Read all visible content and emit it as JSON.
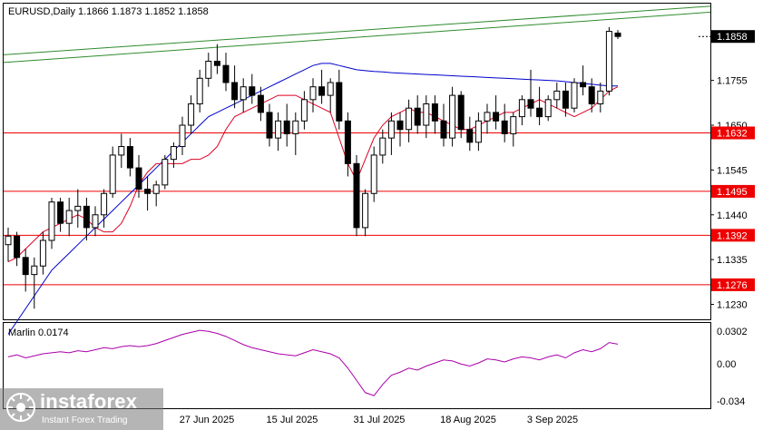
{
  "colors": {
    "candle_bull": "#ffffff",
    "candle_bear": "#000000",
    "ma_blue": "#0000cc",
    "ma_red": "#dd0022",
    "channel_green": "#2e8b2e",
    "level_red": "#ee0000",
    "marlin": "#aa00aa",
    "price_box": "#000000",
    "level_box": "#ee0000"
  },
  "header": {
    "symbol_line": "EURUSD,Daily  1.1866 1.1873 1.1852 1.1858"
  },
  "price_axis": {
    "ticks": [
      "1.1755",
      "1.1650",
      "1.1545",
      "1.1440",
      "1.1335",
      "1.1230"
    ],
    "current_price": "1.1858",
    "levels": [
      "1.1632",
      "1.1495",
      "1.1392",
      "1.1276"
    ]
  },
  "indicator": {
    "label": "Marlin 0.0174",
    "ticks": [
      "0.0302",
      "0.00",
      "-0.034"
    ]
  },
  "date_axis": {
    "labels": [
      "27 Jun 2025",
      "15 Jul 2025",
      "31 Jul 2025",
      "18 Aug 2025",
      "3 Sep 2025"
    ]
  },
  "watermark": {
    "brand": "instaforex",
    "tagline": "Instant Forex Trading"
  },
  "chart_data": [
    {
      "type": "candlestick",
      "title": "EURUSD,Daily",
      "ohlc_header": [
        1.1866,
        1.1873,
        1.1852,
        1.1858
      ],
      "ylim": [
        1.1195,
        1.1935
      ],
      "candles": [
        [
          1.137,
          1.141,
          1.133,
          1.139
        ],
        [
          1.139,
          1.14,
          1.132,
          1.134
        ],
        [
          1.134,
          1.136,
          1.126,
          1.13
        ],
        [
          1.13,
          1.134,
          1.122,
          1.132
        ],
        [
          1.132,
          1.14,
          1.13,
          1.138
        ],
        [
          1.138,
          1.148,
          1.136,
          1.147
        ],
        [
          1.147,
          1.148,
          1.14,
          1.142
        ],
        [
          1.142,
          1.148,
          1.139,
          1.145
        ],
        [
          1.145,
          1.15,
          1.141,
          1.146
        ],
        [
          1.146,
          1.148,
          1.138,
          1.141
        ],
        [
          1.141,
          1.146,
          1.139,
          1.144
        ],
        [
          1.144,
          1.15,
          1.141,
          1.149
        ],
        [
          1.149,
          1.16,
          1.148,
          1.158
        ],
        [
          1.158,
          1.163,
          1.155,
          1.16
        ],
        [
          1.16,
          1.162,
          1.153,
          1.155
        ],
        [
          1.155,
          1.158,
          1.148,
          1.15
        ],
        [
          1.15,
          1.153,
          1.145,
          1.149
        ],
        [
          1.149,
          1.152,
          1.146,
          1.151
        ],
        [
          1.151,
          1.158,
          1.15,
          1.157
        ],
        [
          1.157,
          1.161,
          1.155,
          1.16
        ],
        [
          1.16,
          1.167,
          1.158,
          1.165
        ],
        [
          1.165,
          1.172,
          1.163,
          1.17
        ],
        [
          1.17,
          1.178,
          1.168,
          1.176
        ],
        [
          1.176,
          1.182,
          1.174,
          1.18
        ],
        [
          1.18,
          1.184,
          1.177,
          1.179
        ],
        [
          1.179,
          1.182,
          1.173,
          1.175
        ],
        [
          1.175,
          1.179,
          1.169,
          1.171
        ],
        [
          1.171,
          1.176,
          1.168,
          1.174
        ],
        [
          1.174,
          1.177,
          1.17,
          1.172
        ],
        [
          1.172,
          1.174,
          1.166,
          1.168
        ],
        [
          1.168,
          1.17,
          1.16,
          1.162
        ],
        [
          1.162,
          1.168,
          1.159,
          1.166
        ],
        [
          1.166,
          1.17,
          1.16,
          1.163
        ],
        [
          1.163,
          1.168,
          1.158,
          1.166
        ],
        [
          1.166,
          1.173,
          1.164,
          1.171
        ],
        [
          1.171,
          1.176,
          1.168,
          1.174
        ],
        [
          1.174,
          1.178,
          1.17,
          1.172
        ],
        [
          1.172,
          1.176,
          1.168,
          1.175
        ],
        [
          1.175,
          1.178,
          1.164,
          1.166
        ],
        [
          1.166,
          1.168,
          1.153,
          1.156
        ],
        [
          1.156,
          1.158,
          1.139,
          1.141
        ],
        [
          1.141,
          1.15,
          1.139,
          1.149
        ],
        [
          1.149,
          1.16,
          1.147,
          1.158
        ],
        [
          1.158,
          1.164,
          1.156,
          1.162
        ],
        [
          1.162,
          1.168,
          1.158,
          1.166
        ],
        [
          1.166,
          1.168,
          1.16,
          1.164
        ],
        [
          1.164,
          1.171,
          1.161,
          1.169
        ],
        [
          1.169,
          1.172,
          1.163,
          1.165
        ],
        [
          1.165,
          1.172,
          1.162,
          1.17
        ],
        [
          1.17,
          1.172,
          1.163,
          1.166
        ],
        [
          1.166,
          1.17,
          1.16,
          1.162
        ],
        [
          1.162,
          1.174,
          1.16,
          1.172
        ],
        [
          1.172,
          1.173,
          1.162,
          1.164
        ],
        [
          1.164,
          1.167,
          1.159,
          1.161
        ],
        [
          1.161,
          1.168,
          1.159,
          1.166
        ],
        [
          1.166,
          1.17,
          1.163,
          1.168
        ],
        [
          1.168,
          1.172,
          1.164,
          1.166
        ],
        [
          1.166,
          1.17,
          1.161,
          1.163
        ],
        [
          1.163,
          1.168,
          1.16,
          1.167
        ],
        [
          1.167,
          1.172,
          1.165,
          1.171
        ],
        [
          1.171,
          1.178,
          1.167,
          1.169
        ],
        [
          1.169,
          1.174,
          1.165,
          1.167
        ],
        [
          1.167,
          1.172,
          1.166,
          1.171
        ],
        [
          1.171,
          1.175,
          1.169,
          1.173
        ],
        [
          1.173,
          1.175,
          1.167,
          1.169
        ],
        [
          1.169,
          1.176,
          1.168,
          1.175
        ],
        [
          1.175,
          1.179,
          1.172,
          1.174
        ],
        [
          1.174,
          1.176,
          1.168,
          1.17
        ],
        [
          1.17,
          1.175,
          1.168,
          1.173
        ],
        [
          1.173,
          1.188,
          1.172,
          1.187
        ],
        [
          1.1866,
          1.1873,
          1.1852,
          1.1858
        ]
      ]
    },
    {
      "type": "line",
      "series": [
        {
          "values": [
            1.116,
            1.119,
            1.122,
            1.125,
            1.128,
            1.131,
            1.133,
            1.135,
            1.137,
            1.139,
            1.141,
            1.143,
            1.145,
            1.147,
            1.149,
            1.151,
            1.153,
            1.155,
            1.157,
            1.159,
            1.161,
            1.163,
            1.165,
            1.167,
            1.168,
            1.169,
            1.17,
            1.171,
            1.172,
            1.173,
            1.174,
            1.175,
            1.176,
            1.177,
            1.178,
            1.179,
            1.1795,
            1.1795,
            1.179,
            1.1785,
            1.178,
            1.1778,
            1.1776,
            1.1775,
            1.1773,
            1.1772,
            1.1771,
            1.177,
            1.1769,
            1.1768,
            1.1767,
            1.1766,
            1.1765,
            1.1764,
            1.1763,
            1.1762,
            1.1761,
            1.176,
            1.1759,
            1.1758,
            1.1757,
            1.1756,
            1.1755,
            1.1754,
            1.1752,
            1.175,
            1.1748,
            1.1746,
            1.1744,
            1.1742,
            1.1742
          ]
        },
        {
          "values": [
            1.133,
            1.134,
            1.136,
            1.138,
            1.14,
            1.141,
            1.142,
            1.143,
            1.144,
            1.143,
            1.141,
            1.14,
            1.14,
            1.142,
            1.146,
            1.151,
            1.154,
            1.156,
            1.156,
            1.156,
            1.156,
            1.157,
            1.157,
            1.158,
            1.16,
            1.164,
            1.167,
            1.168,
            1.169,
            1.17,
            1.171,
            1.172,
            1.172,
            1.172,
            1.171,
            1.17,
            1.169,
            1.168,
            1.162,
            1.156,
            1.152,
            1.157,
            1.162,
            1.165,
            1.167,
            1.168,
            1.169,
            1.168,
            1.168,
            1.167,
            1.166,
            1.165,
            1.164,
            1.164,
            1.165,
            1.166,
            1.167,
            1.168,
            1.168,
            1.169,
            1.17,
            1.171,
            1.17,
            1.169,
            1.168,
            1.167,
            1.168,
            1.169,
            1.171,
            1.173,
            1.174
          ]
        }
      ]
    },
    {
      "type": "line",
      "title": "Marlin 0.0174",
      "ylim": [
        -0.034,
        0.0302
      ],
      "values": [
        0.005,
        0.007,
        0.004,
        0.006,
        0.008,
        0.009,
        0.01,
        0.009,
        0.011,
        0.01,
        0.012,
        0.014,
        0.013,
        0.015,
        0.016,
        0.015,
        0.016,
        0.018,
        0.021,
        0.024,
        0.027,
        0.029,
        0.031,
        0.03,
        0.028,
        0.025,
        0.021,
        0.017,
        0.014,
        0.012,
        0.01,
        0.008,
        0.007,
        0.006,
        0.009,
        0.012,
        0.01,
        0.008,
        0.004,
        -0.006,
        -0.018,
        -0.03,
        -0.033,
        -0.022,
        -0.013,
        -0.01,
        -0.006,
        -0.008,
        -0.004,
        -0.001,
        0.002,
        0.001,
        -0.002,
        -0.004,
        -0.001,
        0.003,
        0.002,
        0.0,
        0.003,
        0.005,
        0.004,
        0.002,
        0.005,
        0.007,
        0.004,
        0.009,
        0.012,
        0.01,
        0.013,
        0.019,
        0.0174
      ]
    }
  ]
}
